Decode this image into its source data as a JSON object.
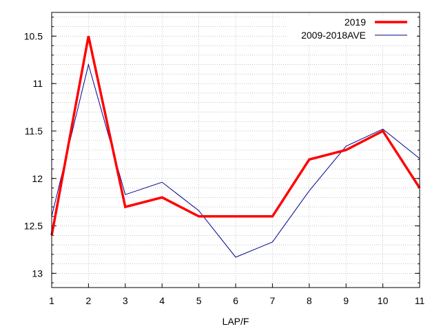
{
  "chart_data": {
    "type": "line",
    "x": [
      1,
      2,
      3,
      4,
      5,
      6,
      7,
      8,
      9,
      10,
      11
    ],
    "series": [
      {
        "name": "2019",
        "color": "#ff0000",
        "values": [
          12.6,
          10.5,
          12.3,
          12.2,
          12.4,
          12.4,
          12.4,
          11.8,
          11.7,
          11.5,
          12.1
        ]
      },
      {
        "name": "2009-2018AVE",
        "color": "#00008b",
        "values": [
          12.4,
          10.8,
          12.17,
          12.04,
          12.34,
          12.83,
          12.67,
          12.13,
          11.66,
          11.48,
          11.79
        ]
      }
    ],
    "xlabel": "LAP/F",
    "ylabel": "",
    "xlim": [
      1,
      11
    ],
    "ylim": [
      13.15,
      10.25
    ],
    "y_inverted": true,
    "xticks": [
      "1",
      "2",
      "3",
      "4",
      "5",
      "6",
      "7",
      "8",
      "9",
      "10",
      "11"
    ],
    "yticks": [
      "10.5",
      "11",
      "11.5",
      "12",
      "12.5",
      "13"
    ],
    "grid": true,
    "legend_position": "top-right"
  }
}
